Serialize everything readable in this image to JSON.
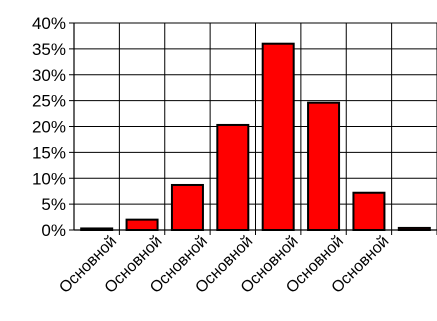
{
  "chart_data": {
    "type": "bar",
    "categories": [
      "Основной",
      "Основной",
      "Основной",
      "Основной",
      "Основной",
      "Основной",
      "Основной",
      ""
    ],
    "values": [
      0.3,
      2.0,
      8.7,
      20.3,
      36.0,
      24.6,
      7.2,
      0.4
    ],
    "ylim": [
      0,
      40
    ],
    "yticks": [
      "0%",
      "5%",
      "10%",
      "15%",
      "20%",
      "25%",
      "30%",
      "35%",
      "40%"
    ],
    "bar_color": "#ff0000",
    "grid": true,
    "legend": "none"
  }
}
